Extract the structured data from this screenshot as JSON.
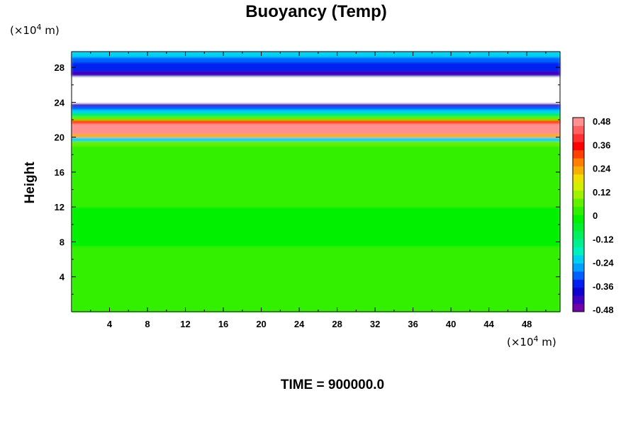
{
  "chart_data": {
    "type": "heatmap",
    "title": "Buoyancy (Temp)",
    "ylabel": "Height",
    "xlabel": "",
    "x_unit": {
      "prefix": "(×10",
      "exp": "4",
      "suffix": " m)"
    },
    "y_unit": {
      "prefix": "(×10",
      "exp": "4",
      "suffix": " m)"
    },
    "xlim": [
      0,
      51.5
    ],
    "ylim": [
      0,
      29.8
    ],
    "x_ticks": [
      4,
      8,
      12,
      16,
      20,
      24,
      28,
      32,
      36,
      40,
      44,
      48
    ],
    "y_ticks": [
      4,
      8,
      12,
      16,
      20,
      24,
      28
    ],
    "colorbar": {
      "range": [
        -0.48,
        0.48
      ],
      "tick_labels": [
        "0.48",
        "0.36",
        "0.24",
        "0.12",
        "0",
        "-0.12",
        "-0.24",
        "-0.36",
        "-0.48"
      ],
      "colors": [
        "#7000a8",
        "#4000c0",
        "#1000d0",
        "#0020f0",
        "#0060ff",
        "#00a0ff",
        "#00d0f0",
        "#00f0c0",
        "#00f090",
        "#00f060",
        "#00f030",
        "#00f000",
        "#30f000",
        "#60f000",
        "#a0f000",
        "#d0f000",
        "#f0e000",
        "#f8b000",
        "#ff8000",
        "#ff4000",
        "#ff0000",
        "#ff3030",
        "#ff6060",
        "#ff9090"
      ]
    },
    "bands": [
      {
        "z0": 0,
        "z1": 7.5,
        "value": 0.0
      },
      {
        "z0": 7.5,
        "z1": 10.0,
        "value": -0.03
      },
      {
        "z0": 10.0,
        "z1": 12.0,
        "value": -0.02
      },
      {
        "z0": 12.0,
        "z1": 16.5,
        "value": 0.0
      },
      {
        "z0": 16.5,
        "z1": 19.0,
        "value": 0.03
      },
      {
        "z0": 19.0,
        "z1": 19.6,
        "value": 0.04
      },
      {
        "z0": 19.6,
        "z1": 20.0,
        "value": -0.2
      },
      {
        "z0": 20.0,
        "z1": 20.4,
        "value": 0.22
      },
      {
        "z0": 20.4,
        "z1": 21.6,
        "value": 0.46
      },
      {
        "z0": 21.6,
        "z1": 22.0,
        "value": 0.3
      },
      {
        "z0": 22.0,
        "z1": 22.4,
        "value": 0.08
      },
      {
        "z0": 22.4,
        "z1": 22.8,
        "value": -0.1
      },
      {
        "z0": 22.8,
        "z1": 23.2,
        "value": -0.2
      },
      {
        "z0": 23.2,
        "z1": 23.6,
        "value": -0.3
      },
      {
        "z0": 23.6,
        "z1": 23.9,
        "value": -0.4
      },
      {
        "z0": 23.9,
        "z1": 27.0,
        "value": null
      },
      {
        "z0": 27.0,
        "z1": 27.6,
        "value": -0.42
      },
      {
        "z0": 27.6,
        "z1": 28.6,
        "value": -0.36
      },
      {
        "z0": 28.6,
        "z1": 29.2,
        "value": -0.3
      },
      {
        "z0": 29.2,
        "z1": 29.8,
        "value": -0.24
      }
    ],
    "time_label": "TIME = 900000.0"
  }
}
